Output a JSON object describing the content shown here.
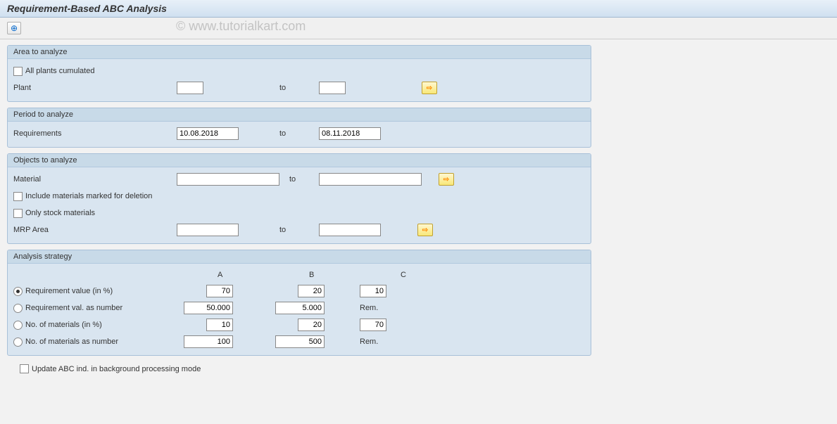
{
  "title": "Requirement-Based ABC Analysis",
  "watermark": "© www.tutorialkart.com",
  "toolbar": {
    "execute_icon": "⊕"
  },
  "area": {
    "group_title": "Area to analyze",
    "all_plants_label": "All plants cumulated",
    "all_plants_checked": false,
    "plant_label": "Plant",
    "plant_from": "",
    "to_label": "to",
    "plant_to": ""
  },
  "period": {
    "group_title": "Period to analyze",
    "requirements_label": "Requirements",
    "from": "10.08.2018",
    "to_label": "to",
    "to": "08.11.2018"
  },
  "objects": {
    "group_title": "Objects to analyze",
    "material_label": "Material",
    "material_from": "",
    "to_label": "to",
    "material_to": "",
    "include_deletion_label": "Include materials marked for deletion",
    "include_deletion_checked": false,
    "only_stock_label": "Only stock materials",
    "only_stock_checked": false,
    "mrp_area_label": "MRP Area",
    "mrp_area_from": "",
    "mrp_area_to": ""
  },
  "strategy": {
    "group_title": "Analysis strategy",
    "col_a": "A",
    "col_b": "B",
    "col_c": "C",
    "rows": [
      {
        "label": "Requirement value (in %)",
        "a": "70",
        "b": "20",
        "c": "10",
        "checked": true,
        "c_is_rem": false
      },
      {
        "label": "Requirement val. as number",
        "a": "50.000",
        "b": "5.000",
        "c": "Rem.",
        "checked": false,
        "c_is_rem": true
      },
      {
        "label": "No. of materials (in %)",
        "a": "10",
        "b": "20",
        "c": "70",
        "checked": false,
        "c_is_rem": false
      },
      {
        "label": "No. of materials as number",
        "a": "100",
        "b": "500",
        "c": "Rem.",
        "checked": false,
        "c_is_rem": true
      }
    ]
  },
  "footer": {
    "update_abc_label": "Update ABC ind. in background processing mode",
    "update_abc_checked": false
  },
  "colors": {
    "title_bg_top": "#e8f0f8",
    "title_bg_bottom": "#d0e0f0",
    "group_bg": "#d9e5f0",
    "group_border": "#a8c0d8",
    "group_title_bg": "#c8dae8",
    "sel_btn_bg_top": "#fff8d0",
    "sel_btn_bg_bottom": "#f8e878",
    "body_bg": "#f2f2f2"
  }
}
